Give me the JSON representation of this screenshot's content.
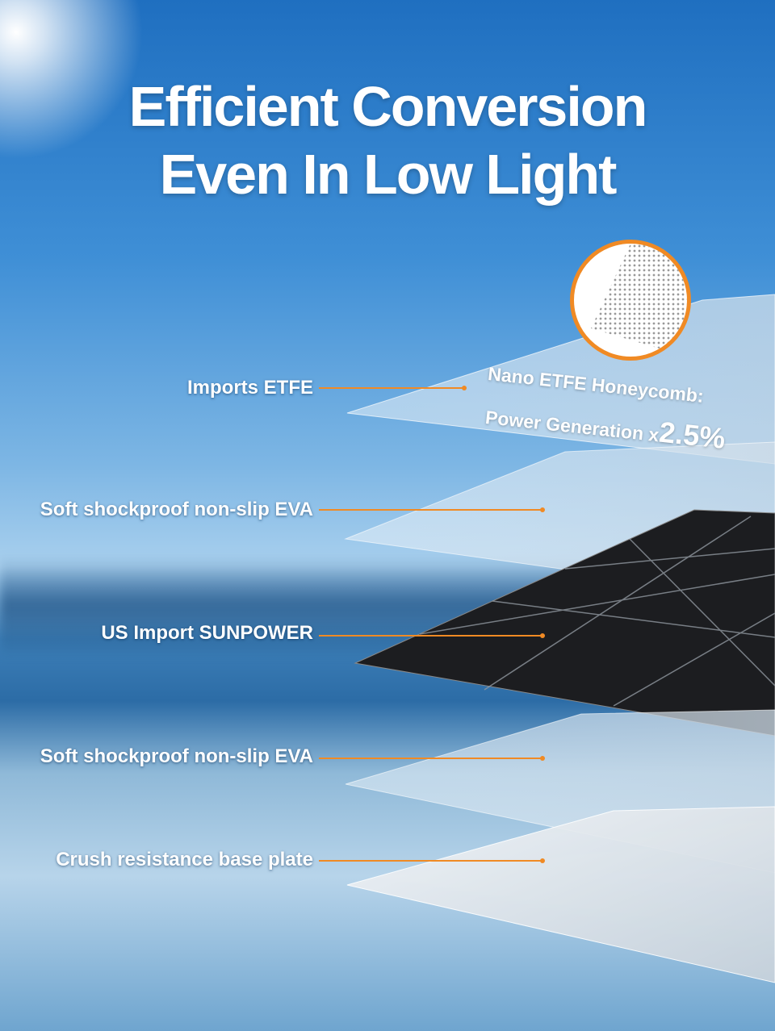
{
  "headline": {
    "line1": "Efficient Conversion",
    "line2": "Even In Low Light"
  },
  "callout": {
    "line1": "Nano ETFE Honeycomb:",
    "line2_prefix": "Power Generation x",
    "line2_value": "2.5%"
  },
  "layers": [
    {
      "label": "Imports ETFE"
    },
    {
      "label": "Soft shockproof non-slip EVA"
    },
    {
      "label": "US Import SUNPOWER"
    },
    {
      "label": "Soft shockproof non-slip EVA"
    },
    {
      "label": "Crush resistance base plate"
    }
  ],
  "colors": {
    "accent": "#f08a24",
    "text": "#ffffff",
    "sky": "#2f7fcc"
  }
}
